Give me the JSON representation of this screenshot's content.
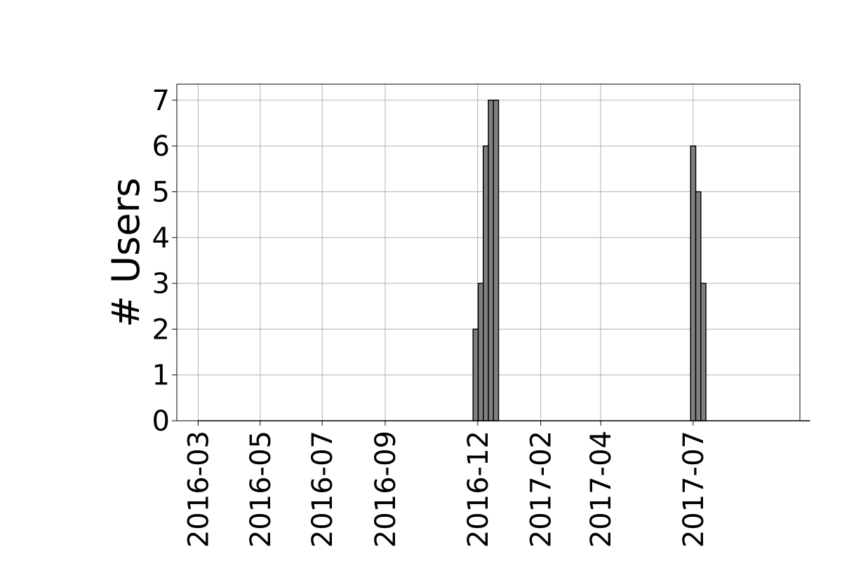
{
  "chart_data": {
    "type": "bar",
    "title": "",
    "xlabel": "",
    "ylabel": "# Users",
    "ylim": [
      0,
      7.35
    ],
    "yticks": [
      0,
      1,
      2,
      3,
      4,
      5,
      6,
      7
    ],
    "x_axis": {
      "type": "date",
      "range": [
        "2016-02-09",
        "2017-10-14"
      ],
      "ticks": [
        {
          "date": "2016-03-01",
          "label": "2016-03"
        },
        {
          "date": "2016-05-01",
          "label": "2016-05"
        },
        {
          "date": "2016-07-01",
          "label": "2016-07"
        },
        {
          "date": "2016-09-01",
          "label": "2016-09"
        },
        {
          "date": "2016-12-01",
          "label": "2016-12"
        },
        {
          "date": "2017-02-01",
          "label": "2017-02"
        },
        {
          "date": "2017-04-01",
          "label": "2017-04"
        },
        {
          "date": "2017-07-01",
          "label": "2017-07"
        }
      ]
    },
    "grid": true,
    "bar_color": "#808080",
    "bar_edge_color": "#000000",
    "bar_width_days": 5,
    "dates": [
      "2016-11-29",
      "2016-12-04",
      "2016-12-09",
      "2016-12-14",
      "2016-12-19",
      "2017-07-01",
      "2017-07-06",
      "2017-07-11"
    ],
    "values": [
      2,
      3,
      6,
      7,
      7,
      6,
      5,
      3
    ]
  }
}
